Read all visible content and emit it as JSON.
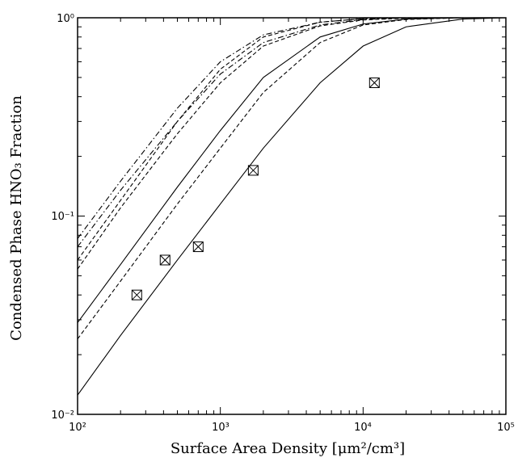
{
  "chart_data": {
    "type": "line",
    "xlabel": "Surface Area Density [μm²/cm³]",
    "ylabel": "Condensed Phase HNO₃ Fraction",
    "xscale": "log",
    "yscale": "log",
    "xlim": [
      100,
      100000
    ],
    "ylim": [
      0.01,
      1
    ],
    "grid": false,
    "x_tick_labels": [
      "10²",
      "10³",
      "10⁴",
      "10⁵"
    ],
    "y_tick_labels": [
      "10⁻²",
      "10⁻¹",
      "10⁰"
    ],
    "series": [
      {
        "style": "solid",
        "x": [
          100,
          200,
          500,
          1000,
          2000,
          5000,
          10000,
          20000,
          50000,
          100000
        ],
        "y": [
          0.0125,
          0.025,
          0.06,
          0.115,
          0.22,
          0.47,
          0.72,
          0.9,
          0.985,
          1.0
        ]
      },
      {
        "style": "solid",
        "x": [
          100,
          200,
          500,
          1000,
          2000,
          5000,
          10000,
          20000,
          50000,
          100000
        ],
        "y": [
          0.029,
          0.057,
          0.14,
          0.27,
          0.5,
          0.8,
          0.93,
          0.985,
          1.0,
          1.0
        ]
      },
      {
        "style": "dashed",
        "x": [
          100,
          200,
          500,
          1000,
          2000,
          5000,
          10000,
          20000,
          50000,
          100000
        ],
        "y": [
          0.024,
          0.047,
          0.115,
          0.22,
          0.42,
          0.75,
          0.92,
          0.98,
          1.0,
          1.0
        ]
      },
      {
        "style": "dashed",
        "x": [
          100,
          200,
          500,
          1000,
          2000,
          5000,
          10000,
          20000,
          50000,
          100000
        ],
        "y": [
          0.06,
          0.12,
          0.3,
          0.55,
          0.8,
          0.95,
          0.99,
          1.0,
          1.0,
          1.0
        ]
      },
      {
        "style": "dashed",
        "x": [
          100,
          200,
          500,
          1000,
          2000,
          5000,
          10000,
          20000,
          50000,
          100000
        ],
        "y": [
          0.054,
          0.11,
          0.26,
          0.47,
          0.72,
          0.91,
          0.975,
          0.995,
          1.0,
          1.0
        ]
      },
      {
        "style": "dashdot",
        "x": [
          100,
          200,
          500,
          1000,
          2000,
          5000,
          10000,
          20000,
          50000,
          100000
        ],
        "y": [
          0.077,
          0.15,
          0.35,
          0.6,
          0.82,
          0.95,
          0.99,
          1.0,
          1.0,
          1.0
        ]
      },
      {
        "style": "dashdot",
        "x": [
          100,
          200,
          500,
          1000,
          2000,
          5000,
          10000,
          20000,
          50000,
          100000
        ],
        "y": [
          0.07,
          0.135,
          0.3,
          0.52,
          0.75,
          0.92,
          0.98,
          1.0,
          1.0,
          1.0
        ]
      }
    ],
    "points": {
      "marker": "boxed-x",
      "x": [
        260,
        410,
        700,
        1700,
        12000
      ],
      "y": [
        0.04,
        0.06,
        0.07,
        0.17,
        0.47
      ]
    }
  }
}
